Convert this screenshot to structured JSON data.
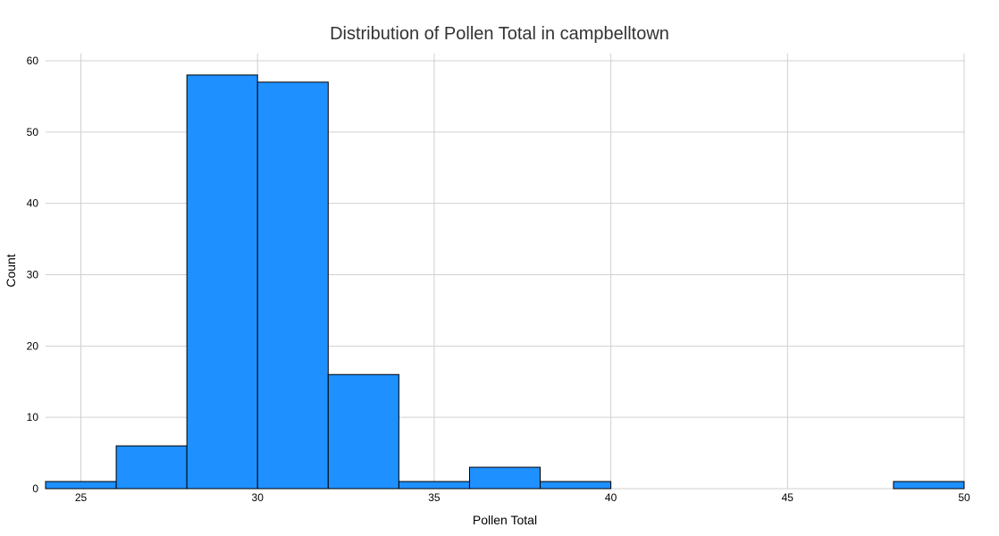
{
  "chart_data": {
    "type": "bar",
    "title": "Distribution of Pollen Total in campbelltown",
    "xlabel": "Pollen Total",
    "ylabel": "Count",
    "xlim": [
      24,
      50
    ],
    "ylim": [
      0,
      61
    ],
    "x_ticks": [
      25,
      30,
      35,
      40,
      45,
      50
    ],
    "y_ticks": [
      0,
      10,
      20,
      30,
      40,
      50,
      60
    ],
    "bins": [
      {
        "start": 24,
        "end": 26,
        "count": 1
      },
      {
        "start": 26,
        "end": 28,
        "count": 6
      },
      {
        "start": 28,
        "end": 30,
        "count": 58
      },
      {
        "start": 30,
        "end": 32,
        "count": 57
      },
      {
        "start": 32,
        "end": 34,
        "count": 16
      },
      {
        "start": 34,
        "end": 36,
        "count": 1
      },
      {
        "start": 36,
        "end": 38,
        "count": 3
      },
      {
        "start": 38,
        "end": 40,
        "count": 1
      },
      {
        "start": 48,
        "end": 50,
        "count": 1
      }
    ],
    "grid": true,
    "bar_color": "#1e90ff",
    "bar_edge_color": "#000000"
  }
}
